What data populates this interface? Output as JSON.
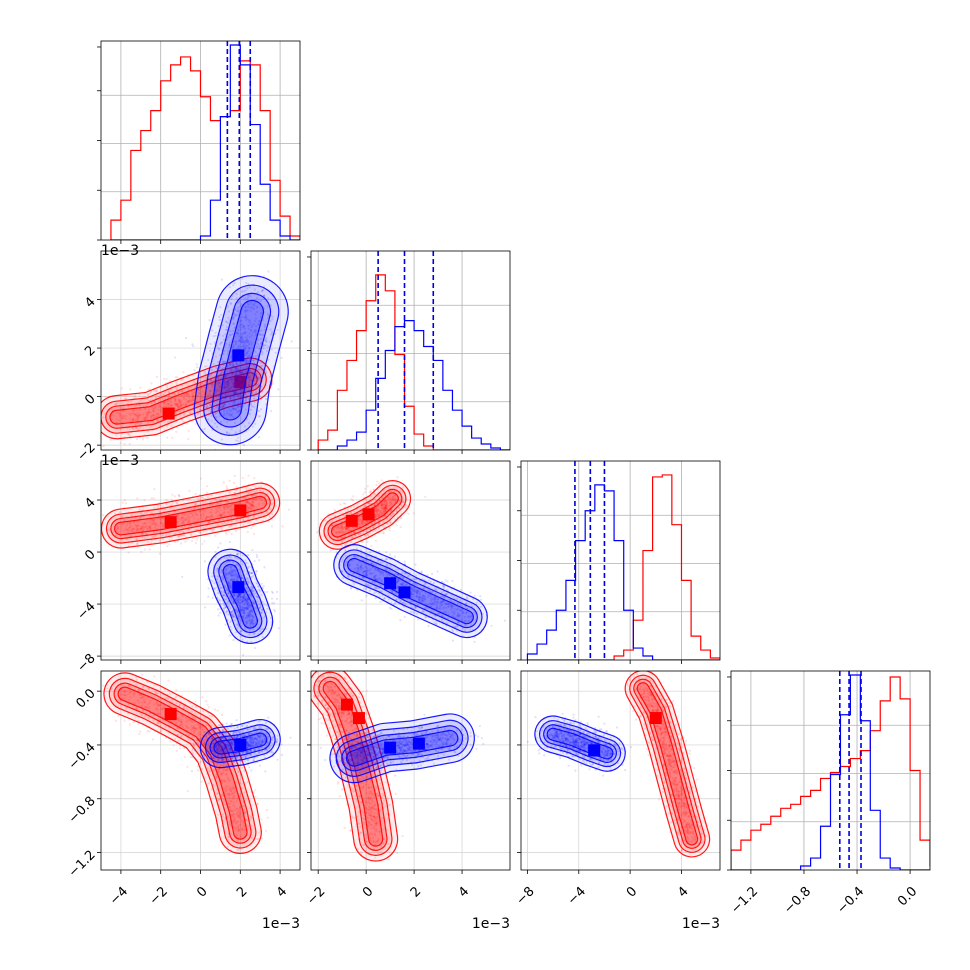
{
  "chart_data": {
    "type": "corner",
    "series": [
      {
        "name": "",
        "color": "#ff0000"
      },
      {
        "name": "",
        "color": "#0000ff"
      }
    ],
    "params": [
      {
        "xlim": [
          -5.0,
          5.0
        ],
        "xticks": [
          -4,
          -2,
          0,
          2,
          4
        ],
        "xtick_labels": [
          "−4",
          "−2",
          "0",
          "2",
          "4"
        ],
        "exponent_label": "1e−3"
      },
      {
        "xlim": [
          -2.3,
          6.0
        ],
        "xticks": [
          -2,
          0,
          2,
          4
        ],
        "xtick_labels": [
          "−2",
          "0",
          "2",
          "4"
        ],
        "exponent_label": "1e−3"
      },
      {
        "xlim": [
          -8.5,
          7.0
        ],
        "xticks": [
          -8,
          -4,
          0,
          4
        ],
        "xtick_labels": [
          "−8",
          "−4",
          "0",
          "4"
        ],
        "exponent_label": "1e−3"
      },
      {
        "xlim": [
          -1.35,
          0.15
        ],
        "xticks": [
          -1.2,
          -0.8,
          -0.4,
          0.0
        ],
        "xtick_labels": [
          "−1.2",
          "−0.8",
          "−0.4",
          "0.0"
        ],
        "exponent_label": ""
      }
    ],
    "ylabels": [
      {
        "yticks": [],
        "ytick_labels": []
      },
      {
        "yticks": [
          -2,
          0,
          2,
          4
        ],
        "ytick_labels": [
          "−2",
          "0",
          "2",
          "4"
        ],
        "exponent_label": "1e−3"
      },
      {
        "yticks": [
          -8,
          -4,
          0,
          4
        ],
        "ytick_labels": [
          "−8",
          "−4",
          "0",
          "4"
        ],
        "exponent_label": "1e−3"
      },
      {
        "yticks": [
          -1.2,
          -0.8,
          -0.4,
          0.0
        ],
        "ytick_labels": [
          "−1.2",
          "−0.8",
          "−0.4",
          "0.0"
        ],
        "exponent_label": ""
      }
    ],
    "histograms": [
      {
        "edges_start": -4.5,
        "bin_width": 0.5,
        "red": [
          0.1,
          0.2,
          0.45,
          0.55,
          0.65,
          0.8,
          0.88,
          0.92,
          0.85,
          0.72,
          0.6,
          0.62,
          0.65,
          0.9,
          0.88,
          0.65,
          0.3,
          0.12,
          0.02,
          0.0
        ],
        "blue": [
          0.0,
          0.0,
          0.0,
          0.0,
          0.0,
          0.0,
          0.0,
          0.0,
          0.0,
          0.02,
          0.2,
          0.62,
          0.98,
          0.88,
          0.58,
          0.28,
          0.1,
          0.02,
          0.0,
          0.0
        ],
        "quantiles": [
          1.35,
          1.95,
          2.5
        ]
      },
      {
        "edges_start": -2.0,
        "bin_width": 0.4,
        "red": [
          0.05,
          0.1,
          0.3,
          0.45,
          0.6,
          0.75,
          0.88,
          0.8,
          0.48,
          0.22,
          0.08,
          0.02,
          0.0,
          0.0,
          0.0,
          0.0,
          0.0,
          0.0,
          0.0,
          0.0
        ],
        "blue": [
          0.0,
          0.0,
          0.02,
          0.05,
          0.09,
          0.2,
          0.36,
          0.5,
          0.62,
          0.65,
          0.6,
          0.52,
          0.45,
          0.3,
          0.2,
          0.12,
          0.06,
          0.03,
          0.01,
          0.0
        ],
        "quantiles": [
          0.5,
          1.6,
          2.8
        ]
      },
      {
        "edges_start": -8.0,
        "bin_width": 0.75,
        "red": [
          0.0,
          0.0,
          0.0,
          0.0,
          0.0,
          0.0,
          0.0,
          0.0,
          0.0,
          0.02,
          0.05,
          0.2,
          0.55,
          0.92,
          0.93,
          0.68,
          0.4,
          0.12,
          0.05,
          0.01
        ],
        "blue": [
          0.03,
          0.08,
          0.15,
          0.25,
          0.4,
          0.6,
          0.75,
          0.88,
          0.85,
          0.6,
          0.25,
          0.06,
          0.02,
          0.0,
          0.0,
          0.0,
          0.0,
          0.0,
          0.0,
          0.0
        ],
        "quantiles": [
          -4.3,
          -3.1,
          -2.0
        ]
      },
      {
        "edges_start": -1.35,
        "bin_width": 0.075,
        "red": [
          0.1,
          0.15,
          0.2,
          0.23,
          0.27,
          0.31,
          0.33,
          0.37,
          0.4,
          0.46,
          0.49,
          0.52,
          0.56,
          0.6,
          0.7,
          0.85,
          0.97,
          0.86,
          0.5,
          0.15,
          0.02
        ],
        "blue": [
          0.0,
          0.0,
          0.0,
          0.0,
          0.0,
          0.0,
          0.0,
          0.02,
          0.06,
          0.22,
          0.48,
          0.78,
          0.98,
          0.75,
          0.3,
          0.06,
          0.01,
          0.0,
          0.0,
          0.0,
          0.0
        ],
        "quantiles": [
          -0.53,
          -0.46,
          -0.37
        ]
      }
    ],
    "clouds_2d": [
      {
        "row": 1,
        "col": 0,
        "series": "red",
        "ridge": [
          [
            -4.2,
            -0.85
          ],
          [
            -2.5,
            -0.7
          ],
          [
            -1.0,
            -0.2
          ],
          [
            1.0,
            0.4
          ],
          [
            2.5,
            0.7
          ]
        ],
        "spread": [
          0.4,
          0.35
        ],
        "peaks": [
          [
            -1.6,
            -0.7
          ],
          [
            2.0,
            0.6
          ]
        ]
      },
      {
        "row": 1,
        "col": 0,
        "series": "blue",
        "ridge": [
          [
            1.5,
            -0.5
          ],
          [
            1.7,
            0.7
          ],
          [
            2.2,
            2.3
          ],
          [
            2.6,
            3.5
          ]
        ],
        "spread": [
          0.5,
          0.7
        ],
        "peaks": [
          [
            1.9,
            1.7
          ]
        ]
      },
      {
        "row": 2,
        "col": 0,
        "series": "red",
        "ridge": [
          [
            -4.0,
            1.8
          ],
          [
            -2.0,
            2.2
          ],
          [
            0.0,
            2.8
          ],
          [
            2.0,
            3.4
          ],
          [
            3.0,
            3.8
          ]
        ],
        "spread": [
          0.35,
          0.6
        ],
        "peaks": [
          [
            -1.5,
            2.3
          ],
          [
            2.0,
            3.2
          ]
        ]
      },
      {
        "row": 2,
        "col": 0,
        "series": "blue",
        "ridge": [
          [
            1.5,
            -1.5
          ],
          [
            1.8,
            -2.8
          ],
          [
            2.2,
            -4.0
          ],
          [
            2.5,
            -5.3
          ]
        ],
        "spread": [
          0.4,
          0.7
        ],
        "peaks": [
          [
            1.9,
            -2.7
          ]
        ]
      },
      {
        "row": 2,
        "col": 1,
        "series": "red",
        "ridge": [
          [
            -1.2,
            1.6
          ],
          [
            -0.3,
            2.3
          ],
          [
            0.6,
            3.2
          ],
          [
            1.1,
            4.1
          ]
        ],
        "spread": [
          0.3,
          0.5
        ],
        "peaks": [
          [
            -0.6,
            2.4
          ],
          [
            0.1,
            2.9
          ]
        ]
      },
      {
        "row": 2,
        "col": 1,
        "series": "blue",
        "ridge": [
          [
            -0.5,
            -1.0
          ],
          [
            0.8,
            -2.0
          ],
          [
            1.8,
            -3.0
          ],
          [
            3.0,
            -4.0
          ],
          [
            4.2,
            -5.0
          ]
        ],
        "spread": [
          0.35,
          0.55
        ],
        "peaks": [
          [
            1.0,
            -2.4
          ],
          [
            1.6,
            -3.1
          ]
        ]
      },
      {
        "row": 3,
        "col": 0,
        "series": "red",
        "ridge": [
          [
            -3.8,
            -0.02
          ],
          [
            -2.5,
            -0.1
          ],
          [
            -1.2,
            -0.2
          ],
          [
            0.0,
            -0.3
          ],
          [
            0.8,
            -0.45
          ],
          [
            1.3,
            -0.65
          ],
          [
            1.8,
            -0.9
          ],
          [
            2.0,
            -1.05
          ]
        ],
        "spread": [
          0.4,
          0.06
        ],
        "peaks": [
          [
            -1.5,
            -0.17
          ]
        ]
      },
      {
        "row": 3,
        "col": 0,
        "series": "blue",
        "ridge": [
          [
            1.0,
            -0.42
          ],
          [
            2.0,
            -0.4
          ],
          [
            3.0,
            -0.36
          ]
        ],
        "spread": [
          0.45,
          0.045
        ],
        "peaks": [
          [
            2.0,
            -0.4
          ]
        ]
      },
      {
        "row": 3,
        "col": 1,
        "series": "red",
        "ridge": [
          [
            -1.5,
            0.02
          ],
          [
            -1.0,
            -0.1
          ],
          [
            -0.6,
            -0.3
          ],
          [
            -0.2,
            -0.55
          ],
          [
            0.2,
            -0.85
          ],
          [
            0.4,
            -1.1
          ]
        ],
        "spread": [
          0.3,
          0.07
        ],
        "peaks": [
          [
            -0.8,
            -0.1
          ],
          [
            -0.3,
            -0.2
          ]
        ]
      },
      {
        "row": 3,
        "col": 1,
        "series": "blue",
        "ridge": [
          [
            -0.5,
            -0.5
          ],
          [
            0.8,
            -0.42
          ],
          [
            2.0,
            -0.4
          ],
          [
            3.5,
            -0.35
          ]
        ],
        "spread": [
          0.5,
          0.04
        ],
        "peaks": [
          [
            1.0,
            -0.42
          ],
          [
            2.2,
            -0.39
          ]
        ]
      },
      {
        "row": 3,
        "col": 2,
        "series": "red",
        "ridge": [
          [
            1.0,
            0.02
          ],
          [
            2.0,
            -0.15
          ],
          [
            2.8,
            -0.4
          ],
          [
            3.5,
            -0.65
          ],
          [
            4.2,
            -0.9
          ],
          [
            4.8,
            -1.1
          ]
        ],
        "spread": [
          0.4,
          0.06
        ],
        "peaks": [
          [
            2.0,
            -0.2
          ]
        ]
      },
      {
        "row": 3,
        "col": 2,
        "series": "blue",
        "ridge": [
          [
            -6.0,
            -0.32
          ],
          [
            -4.5,
            -0.36
          ],
          [
            -3.0,
            -0.42
          ],
          [
            -1.8,
            -0.46
          ]
        ],
        "spread": [
          0.6,
          0.045
        ],
        "peaks": [
          [
            -2.8,
            -0.44
          ]
        ]
      }
    ]
  }
}
